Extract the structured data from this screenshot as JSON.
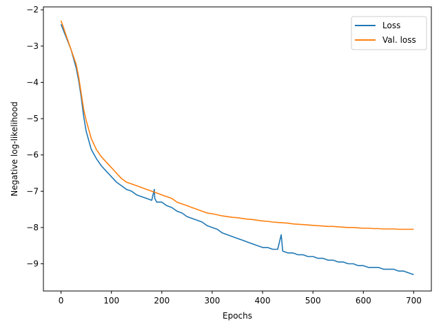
{
  "chart_data": {
    "type": "line",
    "title": "",
    "xlabel": "Epochs",
    "ylabel": "Negative log-likelihood",
    "xlim": [
      -35,
      735
    ],
    "ylim": [
      -9.75,
      -1.92
    ],
    "xticks": [
      0,
      100,
      200,
      300,
      400,
      500,
      600,
      700
    ],
    "yticks": [
      -9,
      -8,
      -7,
      -6,
      -5,
      -4,
      -3,
      -2
    ],
    "xtick_labels": [
      "0",
      "100",
      "200",
      "300",
      "400",
      "500",
      "600",
      "700"
    ],
    "ytick_labels": [
      "−9",
      "−8",
      "−7",
      "−6",
      "−5",
      "−4",
      "−3",
      "−2"
    ],
    "grid": false,
    "legend_position": "top-right",
    "series": [
      {
        "name": "Loss",
        "color": "#1f77b4",
        "x": [
          0,
          10,
          20,
          30,
          35,
          40,
          45,
          50,
          55,
          60,
          70,
          80,
          90,
          100,
          110,
          120,
          130,
          140,
          150,
          160,
          170,
          180,
          185,
          186,
          190,
          200,
          210,
          220,
          230,
          240,
          250,
          260,
          270,
          280,
          290,
          300,
          310,
          320,
          330,
          340,
          350,
          360,
          370,
          380,
          390,
          400,
          410,
          420,
          430,
          437,
          440,
          450,
          460,
          470,
          480,
          490,
          500,
          510,
          520,
          530,
          540,
          550,
          560,
          570,
          580,
          590,
          600,
          610,
          620,
          630,
          640,
          650,
          660,
          670,
          680,
          690,
          700
        ],
        "values": [
          -2.4,
          -2.75,
          -3.1,
          -3.6,
          -3.95,
          -4.4,
          -4.95,
          -5.35,
          -5.6,
          -5.85,
          -6.1,
          -6.3,
          -6.45,
          -6.6,
          -6.75,
          -6.85,
          -6.95,
          -7.0,
          -7.1,
          -7.15,
          -7.2,
          -7.25,
          -6.95,
          -7.2,
          -7.3,
          -7.3,
          -7.4,
          -7.45,
          -7.55,
          -7.6,
          -7.7,
          -7.75,
          -7.8,
          -7.85,
          -7.95,
          -8.0,
          -8.05,
          -8.15,
          -8.2,
          -8.25,
          -8.3,
          -8.35,
          -8.4,
          -8.45,
          -8.5,
          -8.55,
          -8.55,
          -8.6,
          -8.6,
          -8.2,
          -8.65,
          -8.7,
          -8.7,
          -8.75,
          -8.75,
          -8.8,
          -8.8,
          -8.85,
          -8.85,
          -8.9,
          -8.9,
          -8.95,
          -8.95,
          -9.0,
          -9.0,
          -9.05,
          -9.05,
          -9.1,
          -9.1,
          -9.1,
          -9.15,
          -9.15,
          -9.15,
          -9.2,
          -9.2,
          -9.25,
          -9.3
        ]
      },
      {
        "name": "Val. loss",
        "color": "#ff7f0e",
        "x": [
          0,
          10,
          20,
          30,
          35,
          40,
          45,
          50,
          55,
          60,
          70,
          80,
          90,
          100,
          110,
          120,
          130,
          140,
          150,
          160,
          170,
          180,
          190,
          200,
          210,
          220,
          230,
          240,
          250,
          260,
          270,
          280,
          290,
          300,
          310,
          320,
          330,
          340,
          350,
          360,
          370,
          380,
          390,
          400,
          410,
          420,
          430,
          440,
          450,
          460,
          470,
          480,
          490,
          500,
          510,
          520,
          530,
          540,
          550,
          560,
          570,
          580,
          590,
          600,
          610,
          620,
          630,
          640,
          650,
          660,
          670,
          680,
          690,
          700
        ],
        "values": [
          -2.3,
          -2.7,
          -3.1,
          -3.5,
          -3.85,
          -4.3,
          -4.75,
          -5.05,
          -5.3,
          -5.55,
          -5.85,
          -6.05,
          -6.2,
          -6.35,
          -6.5,
          -6.65,
          -6.75,
          -6.8,
          -6.85,
          -6.9,
          -6.95,
          -7.0,
          -7.05,
          -7.1,
          -7.15,
          -7.2,
          -7.3,
          -7.35,
          -7.4,
          -7.45,
          -7.5,
          -7.55,
          -7.6,
          -7.62,
          -7.65,
          -7.68,
          -7.7,
          -7.72,
          -7.73,
          -7.75,
          -7.77,
          -7.78,
          -7.8,
          -7.82,
          -7.83,
          -7.85,
          -7.86,
          -7.87,
          -7.88,
          -7.9,
          -7.91,
          -7.92,
          -7.93,
          -7.94,
          -7.95,
          -7.96,
          -7.97,
          -7.97,
          -7.98,
          -7.99,
          -8.0,
          -8.0,
          -8.01,
          -8.02,
          -8.02,
          -8.03,
          -8.03,
          -8.04,
          -8.04,
          -8.04,
          -8.05,
          -8.05,
          -8.05,
          -8.05
        ]
      }
    ]
  }
}
